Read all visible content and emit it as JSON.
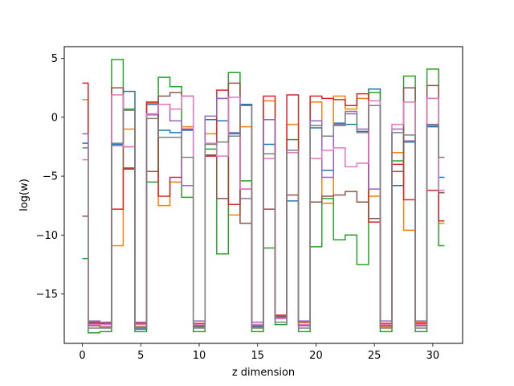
{
  "chart_data": {
    "type": "line",
    "drawstyle": "steps-mid",
    "xlabel": "z dimension",
    "ylabel": "log(w)",
    "xlim": [
      -1.55,
      32.55
    ],
    "ylim": [
      -19.2,
      6.0
    ],
    "xticks": [
      0,
      5,
      10,
      15,
      20,
      25,
      30
    ],
    "yticks": [
      5,
      0,
      -5,
      -10,
      -15
    ],
    "ytick_labels": [
      "5",
      "0",
      "−5",
      "−10",
      "−15"
    ],
    "grid": false,
    "x": [
      0,
      1,
      2,
      3,
      4,
      5,
      6,
      7,
      8,
      9,
      10,
      11,
      12,
      13,
      14,
      15,
      16,
      17,
      18,
      19,
      20,
      21,
      22,
      23,
      24,
      25,
      26,
      27,
      28,
      29,
      30,
      31
    ],
    "series": [
      {
        "color": "#1f77b4",
        "values": [
          -2.2,
          -17.5,
          -17.6,
          -2.3,
          2.2,
          -18.0,
          1.1,
          -1.1,
          -1.3,
          -1.1,
          -17.7,
          -0.2,
          -0.3,
          -1.4,
          1.1,
          -17.8,
          -2.3,
          -17.0,
          -7.1,
          -17.6,
          -0.9,
          -4.5,
          -0.5,
          -0.6,
          -1.2,
          2.4,
          -17.6,
          -5.8,
          -2.1,
          -17.7,
          -0.8,
          -5.1
        ]
      },
      {
        "color": "#ff7f0e",
        "values": [
          1.5,
          -17.6,
          -17.5,
          -10.9,
          -1.0,
          -17.8,
          1.2,
          -7.5,
          -5.5,
          -0.8,
          -17.6,
          -1.4,
          1.6,
          -8.3,
          -0.8,
          -17.6,
          1.4,
          -17.0,
          -0.6,
          -17.4,
          1.3,
          -7.3,
          1.8,
          0.7,
          1.6,
          -6.7,
          -17.8,
          -3.0,
          -9.6,
          -17.4,
          1.6,
          -9.0
        ]
      },
      {
        "color": "#2ca02c",
        "values": [
          -12.0,
          -18.3,
          -18.2,
          4.9,
          0.7,
          -18.2,
          -5.5,
          3.4,
          2.6,
          -6.8,
          -18.2,
          -2.7,
          -11.6,
          3.8,
          -5.4,
          -18.2,
          -11.1,
          -17.6,
          -1.9,
          -18.2,
          -11.0,
          -6.9,
          -10.4,
          -10.0,
          -12.5,
          2.1,
          -18.2,
          -3.7,
          3.5,
          -18.2,
          4.1,
          -10.9
        ]
      },
      {
        "color": "#d62728",
        "values": [
          2.9,
          -17.4,
          -17.5,
          -7.8,
          -4.4,
          -17.5,
          1.3,
          -6.7,
          -5.1,
          -1.0,
          -17.5,
          -3.3,
          2.3,
          -7.4,
          -6.1,
          -17.6,
          1.8,
          -16.8,
          1.9,
          -17.4,
          1.8,
          1.6,
          1.5,
          1.0,
          2.0,
          -8.9,
          -17.5,
          -4.0,
          -7.0,
          -17.5,
          -6.2,
          -8.8
        ]
      },
      {
        "color": "#9467bd",
        "values": [
          -1.4,
          -17.3,
          -17.4,
          -2.4,
          -2.5,
          -17.4,
          0.2,
          1.1,
          -0.3,
          -5.8,
          -17.3,
          0.1,
          1.6,
          -1.3,
          -6.9,
          -17.4,
          -0.2,
          -17.0,
          -3.0,
          -17.3,
          -0.3,
          -5.1,
          -0.6,
          0.3,
          -1.0,
          -6.1,
          -17.3,
          -1.0,
          -2.0,
          -17.3,
          -0.7,
          -6.4
        ]
      },
      {
        "color": "#8c564b",
        "values": [
          -8.4,
          -17.7,
          -17.8,
          2.5,
          -4.3,
          -17.8,
          -4.6,
          1.8,
          2.1,
          1.8,
          -17.8,
          -3.2,
          -6.9,
          2.9,
          -9.0,
          -17.7,
          -7.8,
          -16.9,
          -6.6,
          -17.7,
          -7.2,
          -6.7,
          -6.6,
          -6.3,
          -7.2,
          -8.6,
          -17.7,
          -4.6,
          2.5,
          -17.7,
          2.7,
          -6.4
        ]
      },
      {
        "color": "#e377c2",
        "values": [
          -3.6,
          -17.6,
          -17.6,
          1.9,
          -2.5,
          -17.6,
          0.3,
          1.1,
          0.7,
          1.8,
          -17.6,
          -2.2,
          -3.3,
          1.7,
          -6.1,
          -17.6,
          -3.5,
          -17.1,
          -3.0,
          -17.6,
          -3.5,
          -2.8,
          -2.6,
          -4.2,
          -3.9,
          1.4,
          -17.6,
          -0.6,
          1.3,
          -17.6,
          1.6,
          -6.2
        ]
      },
      {
        "color": "#7f7f7f",
        "values": [
          -2.6,
          -17.9,
          -17.9,
          -2.2,
          0.6,
          -17.9,
          -0.1,
          -1.7,
          -1.7,
          -3.4,
          -17.9,
          -2.3,
          -2.1,
          -1.6,
          1.0,
          -17.9,
          -3.1,
          -17.4,
          -2.8,
          -17.9,
          -0.7,
          -1.6,
          -0.7,
          0.5,
          -1.3,
          1.0,
          -17.9,
          -1.3,
          -1.5,
          -17.9,
          -0.6,
          -3.4
        ]
      }
    ]
  }
}
